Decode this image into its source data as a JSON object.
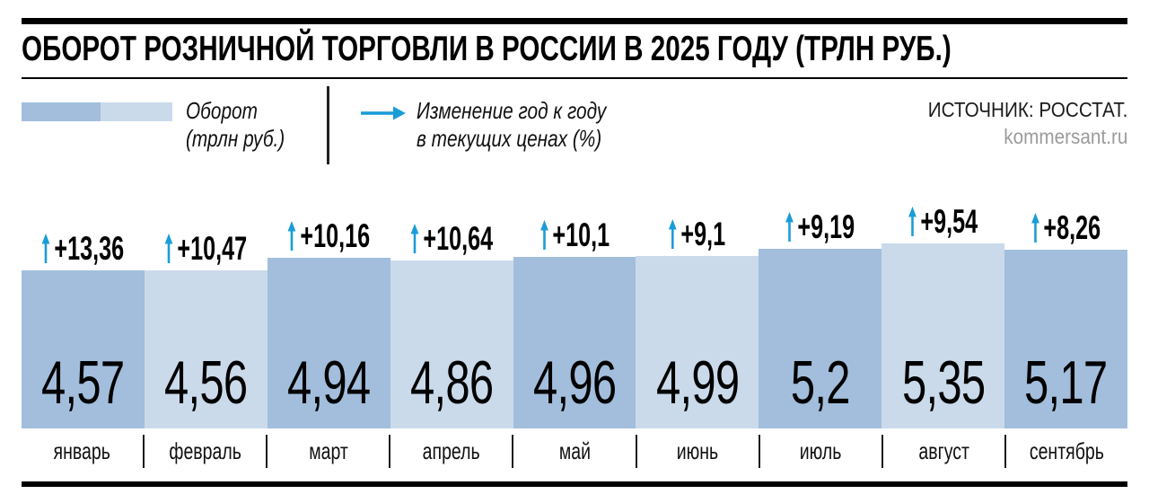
{
  "title": "ОБОРОТ РОЗНИЧНОЙ ТОРГОВЛИ В РОССИИ В 2025 ГОДУ (ТРЛН РУБ.)",
  "legend": {
    "turnover_label_line1": "Оборот",
    "turnover_label_line2": "(трлн руб.)",
    "change_label_line1": "Изменение год к году",
    "change_label_line2": "в текущих ценах (%)"
  },
  "source": {
    "line1": "ИСТОЧНИК: РОССТАТ.",
    "line2": "kommersant.ru"
  },
  "colors": {
    "bar_dark": "#a2bedc",
    "bar_light": "#cadaeb",
    "arrow_blue": "#1a9cd8",
    "rule_black": "#000000"
  },
  "chart_data": {
    "type": "bar",
    "title": "Оборот розничной торговли в России в 2025 году (трлн руб.)",
    "categories": [
      "январь",
      "февраль",
      "март",
      "апрель",
      "май",
      "июнь",
      "июль",
      "август",
      "сентябрь"
    ],
    "series": [
      {
        "name": "Оборот (трлн руб.)",
        "values": [
          4.57,
          4.56,
          4.94,
          4.86,
          4.96,
          4.99,
          5.2,
          5.35,
          5.17
        ],
        "labels": [
          "4,57",
          "4,56",
          "4,94",
          "4,86",
          "4,96",
          "4,99",
          "5,2",
          "5,35",
          "5,17"
        ]
      },
      {
        "name": "Изменение год к году в текущих ценах (%)",
        "values": [
          13.36,
          10.47,
          10.16,
          10.64,
          10.1,
          9.1,
          9.19,
          9.54,
          8.26
        ],
        "labels": [
          "+13,36",
          "+10,47",
          "+10,16",
          "+10,64",
          "+10,1",
          "+9,1",
          "+9,19",
          "+9,54",
          "+8,26"
        ]
      }
    ],
    "ylim": [
      0,
      7.2
    ],
    "grid": false,
    "legend_position": "top",
    "bar_color_pattern": "alternating dark/light blue",
    "value_labels": "inside bars at bottom",
    "change_labels": "above bars with blue up arrow"
  }
}
